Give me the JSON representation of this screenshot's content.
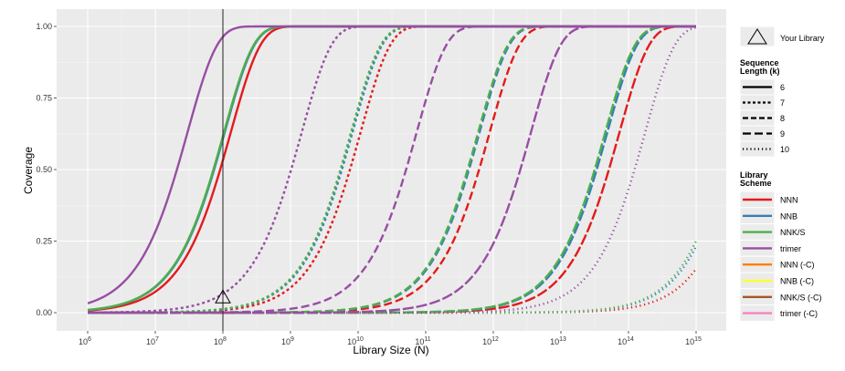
{
  "chart_data": {
    "type": "line",
    "xlabel": "Library Size (N)",
    "ylabel": "Coverage",
    "x_scale": "log10",
    "xlim": [
      1000000.0,
      1000000000000000.0
    ],
    "ylim": [
      0,
      1
    ],
    "x_ticks": [
      {
        "value": 1000000.0,
        "base": "10",
        "exp": "6"
      },
      {
        "value": 10000000.0,
        "base": "10",
        "exp": "7"
      },
      {
        "value": 100000000.0,
        "base": "10",
        "exp": "8"
      },
      {
        "value": 1000000000.0,
        "base": "10",
        "exp": "9"
      },
      {
        "value": 10000000000.0,
        "base": "10",
        "exp": "10"
      },
      {
        "value": 100000000000.0,
        "base": "10",
        "exp": "11"
      },
      {
        "value": 1000000000000.0,
        "base": "10",
        "exp": "12"
      },
      {
        "value": 10000000000000.0,
        "base": "10",
        "exp": "13"
      },
      {
        "value": 100000000000000.0,
        "base": "10",
        "exp": "14"
      },
      {
        "value": 1000000000000000.0,
        "base": "10",
        "exp": "15"
      }
    ],
    "y_ticks": [
      {
        "value": 0,
        "label": "0.00"
      },
      {
        "value": 0.25,
        "label": "0.25"
      },
      {
        "value": 0.5,
        "label": "0.50"
      },
      {
        "value": 0.75,
        "label": "0.75"
      },
      {
        "value": 1,
        "label": "1.00"
      }
    ],
    "grid": true,
    "background": "#ebebeb",
    "legend_position": "right",
    "marker": {
      "label": "Your Library",
      "x": 100000000.0,
      "y": 0.05,
      "vline_x": 100000000.0
    },
    "legend": {
      "length_title": [
        "Sequence",
        "Length (k)"
      ],
      "lengths": [
        {
          "k": 6,
          "label": "6",
          "dash": "solid"
        },
        {
          "k": 7,
          "label": "7",
          "dash": "short-dash"
        },
        {
          "k": 8,
          "label": "8",
          "dash": "long-dash"
        },
        {
          "k": 9,
          "label": "9",
          "dash": "longer-dash"
        },
        {
          "k": 10,
          "label": "10",
          "dash": "dotted"
        }
      ],
      "scheme_title": [
        "Library",
        "Scheme"
      ],
      "schemes": [
        {
          "name": "NNN",
          "color": "#e41a1c"
        },
        {
          "name": "NNB",
          "color": "#377eb8"
        },
        {
          "name": "NNK/S",
          "color": "#4daf4a"
        },
        {
          "name": "trimer",
          "color": "#984ea3"
        },
        {
          "name": "NNN (-C)",
          "color": "#ff7f00"
        },
        {
          "name": "NNB (-C)",
          "color": "#ffff33"
        },
        {
          "name": "NNK/S (-C)",
          "color": "#a65628"
        },
        {
          "name": "trimer (-C)",
          "color": "#f781bf"
        }
      ]
    },
    "series": [
      {
        "scheme": "NNN",
        "k": 6,
        "half_coverage_log10N": 7.96
      },
      {
        "scheme": "NNB",
        "k": 6,
        "half_coverage_log10N": 7.87
      },
      {
        "scheme": "NNK/S",
        "k": 6,
        "half_coverage_log10N": 7.86
      },
      {
        "scheme": "trimer",
        "k": 6,
        "half_coverage_log10N": 7.32
      },
      {
        "scheme": "NNN",
        "k": 7,
        "half_coverage_log10N": 9.88
      },
      {
        "scheme": "NNB",
        "k": 7,
        "half_coverage_log10N": 9.76
      },
      {
        "scheme": "NNK/S",
        "k": 7,
        "half_coverage_log10N": 9.74
      },
      {
        "scheme": "trimer",
        "k": 7,
        "half_coverage_log10N": 9.01
      },
      {
        "scheme": "NNN",
        "k": 8,
        "half_coverage_log10N": 11.79
      },
      {
        "scheme": "NNB",
        "k": 8,
        "half_coverage_log10N": 11.64
      },
      {
        "scheme": "NNK/S",
        "k": 8,
        "half_coverage_log10N": 11.62
      },
      {
        "scheme": "trimer",
        "k": 8,
        "half_coverage_log10N": 10.71
      },
      {
        "scheme": "NNN",
        "k": 9,
        "half_coverage_log10N": 13.71
      },
      {
        "scheme": "NNB",
        "k": 9,
        "half_coverage_log10N": 13.53
      },
      {
        "scheme": "NNK/S",
        "k": 9,
        "half_coverage_log10N": 13.5
      },
      {
        "scheme": "trimer",
        "k": 9,
        "half_coverage_log10N": 12.4
      },
      {
        "scheme": "NNN",
        "k": 10,
        "half_coverage_log10N": 15.62
      },
      {
        "scheme": "NNB",
        "k": 10,
        "half_coverage_log10N": 15.42
      },
      {
        "scheme": "NNK/S",
        "k": 10,
        "half_coverage_log10N": 15.38
      },
      {
        "scheme": "trimer",
        "k": 10,
        "half_coverage_log10N": 14.09
      }
    ]
  }
}
